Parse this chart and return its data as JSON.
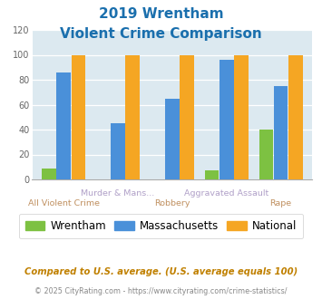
{
  "title_line1": "2019 Wrentham",
  "title_line2": "Violent Crime Comparison",
  "categories": [
    "All Violent Crime",
    "Murder & Mans...",
    "Robbery",
    "Aggravated Assault",
    "Rape"
  ],
  "wrentham": [
    9,
    0,
    0,
    7,
    40
  ],
  "massachusetts": [
    86,
    45,
    65,
    96,
    75
  ],
  "national": [
    100,
    100,
    100,
    100,
    100
  ],
  "colors": {
    "wrentham": "#7dc142",
    "massachusetts": "#4a90d9",
    "national": "#f5a623"
  },
  "ylim": [
    0,
    120
  ],
  "yticks": [
    0,
    20,
    40,
    60,
    80,
    100,
    120
  ],
  "footer1": "Compared to U.S. average. (U.S. average equals 100)",
  "footer2": "© 2025 CityRating.com - https://www.cityrating.com/crime-statistics/",
  "legend_labels": [
    "Wrentham",
    "Massachusetts",
    "National"
  ],
  "plot_bg": "#dce9f0",
  "title_color": "#1a6fad",
  "label_color_top": "#b0a0c0",
  "label_color_bot": "#c08060"
}
